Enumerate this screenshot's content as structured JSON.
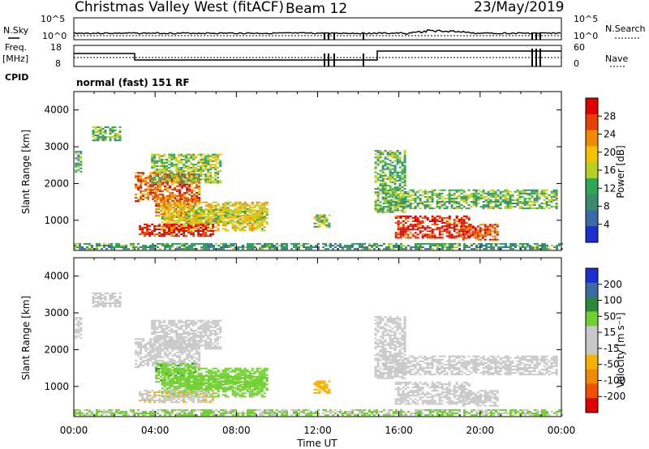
{
  "header": {
    "title": "Christmas Valley West (fitACF)",
    "beam": "Beam 12",
    "date": "23/May/2019"
  },
  "strip_nsky": {
    "left_label": "N.Sky",
    "right_label": "N.Search",
    "y_ticks": [
      "10^5",
      "10^0"
    ]
  },
  "strip_freq": {
    "left_label_1": "Freq.",
    "left_label_2": "[MHz]",
    "right_label": "Nave",
    "left_ticks": [
      "18",
      "8"
    ],
    "right_ticks": [
      "60",
      "0"
    ]
  },
  "cpid": {
    "label": "CPID",
    "mode": "normal (fast) 151 RF"
  },
  "colors": {
    "power_scale": [
      "#1a2fd0",
      "#3a6aa8",
      "#3a8a70",
      "#2fa855",
      "#b8d020",
      "#f5c000",
      "#f08a00",
      "#e84000",
      "#e00000"
    ],
    "velocity_scale": [
      "#1a2fd0",
      "#3a6aa8",
      "#2a8a3a",
      "#70d030",
      "#c8c8c8",
      "#c8c8c8",
      "#f5b000",
      "#f08a00",
      "#f05000",
      "#e00000"
    ]
  },
  "chart_data": [
    {
      "type": "heatmap",
      "name": "power",
      "ylabel": "Slant Range [km]",
      "y_ticks": [
        "4000",
        "3000",
        "2000",
        "1000"
      ],
      "ylim": [
        180,
        4500
      ],
      "x_ticks": [
        "00:00",
        "04:00",
        "08:00",
        "12:00",
        "16:00",
        "20:00",
        "00:00"
      ],
      "colorbar_label": "Power [dB]",
      "colorbar_ticks": [
        "28",
        "24",
        "20",
        "16",
        "12",
        "8",
        "4"
      ],
      "colorbar_range": [
        0,
        30
      ]
    },
    {
      "type": "heatmap",
      "name": "velocity",
      "ylabel": "Slant Range [km]",
      "y_ticks": [
        "4000",
        "3000",
        "2000",
        "1000"
      ],
      "ylim": [
        180,
        4500
      ],
      "x_ticks": [
        "00:00",
        "04:00",
        "08:00",
        "12:00",
        "16:00",
        "20:00",
        "00:00"
      ],
      "xlabel": "Time UT",
      "colorbar_label": "Velocity [m s⁻¹]",
      "colorbar_ticks": [
        "200",
        "100",
        "50",
        "15",
        "-15",
        "-50",
        "-100",
        "-200"
      ],
      "colorbar_range": [
        -250,
        250
      ]
    }
  ]
}
